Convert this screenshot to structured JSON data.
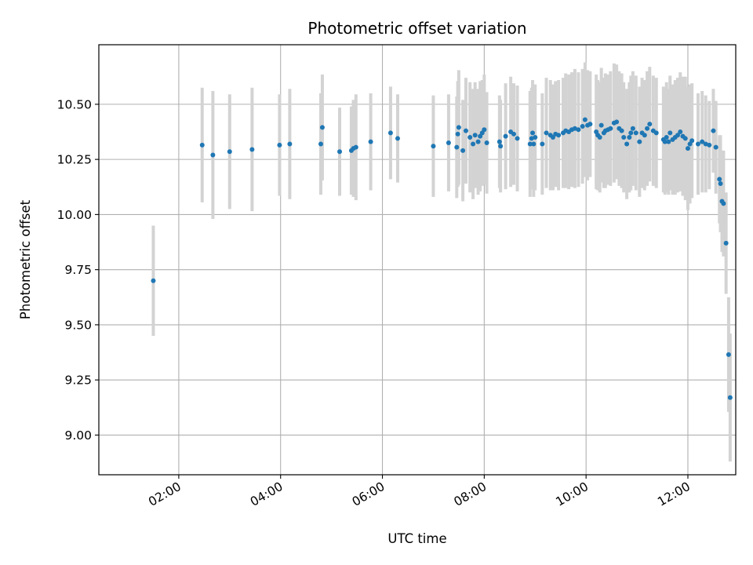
{
  "chart_data": {
    "type": "scatter",
    "title": "Photometric offset variation",
    "xlabel": "UTC time",
    "ylabel": "Photometric offset",
    "xlim": [
      0.43,
      12.94
    ],
    "ylim": [
      8.82,
      10.77
    ],
    "grid": true,
    "x_ticks": [
      2,
      4,
      6,
      8,
      10,
      12
    ],
    "x_tick_labels": [
      "02:00",
      "04:00",
      "06:00",
      "08:00",
      "10:00",
      "12:00"
    ],
    "y_ticks": [
      9.0,
      9.25,
      9.5,
      9.75,
      10.0,
      10.25,
      10.5
    ],
    "y_tick_labels": [
      "9.00",
      "9.25",
      "9.50",
      "9.75",
      "10.00",
      "10.25",
      "10.50"
    ],
    "colors": {
      "point": "#1f77b4",
      "errorbar": "#d3d3d3",
      "grid": "#b0b0b0"
    },
    "series": [
      {
        "name": "offset",
        "x": [
          1.5,
          2.46,
          2.67,
          3.0,
          3.44,
          3.98,
          4.18,
          4.79,
          4.82,
          5.16,
          5.39,
          5.43,
          5.48,
          5.77,
          6.16,
          6.3,
          7.0,
          7.3,
          7.46,
          7.48,
          7.5,
          7.58,
          7.64,
          7.72,
          7.78,
          7.82,
          7.88,
          7.92,
          7.96,
          8.0,
          8.05,
          8.3,
          8.32,
          8.42,
          8.52,
          8.58,
          8.65,
          8.9,
          8.93,
          8.95,
          8.97,
          9.0,
          9.14,
          9.22,
          9.3,
          9.35,
          9.4,
          9.46,
          9.55,
          9.6,
          9.66,
          9.72,
          9.78,
          9.85,
          9.93,
          9.98,
          10.03,
          10.08,
          10.2,
          10.23,
          10.27,
          10.3,
          10.35,
          10.38,
          10.43,
          10.48,
          10.55,
          10.6,
          10.65,
          10.7,
          10.74,
          10.8,
          10.85,
          10.88,
          10.92,
          10.98,
          11.05,
          11.1,
          11.15,
          11.2,
          11.25,
          11.32,
          11.38,
          11.52,
          11.55,
          11.58,
          11.62,
          11.65,
          11.7,
          11.75,
          11.8,
          11.85,
          11.9,
          11.95,
          12.0,
          12.04,
          12.08,
          12.2,
          12.28,
          12.35,
          12.42,
          12.5,
          12.55,
          12.62,
          12.64,
          12.67,
          12.7,
          12.75,
          12.8,
          12.83
        ],
        "y": [
          9.7,
          10.315,
          10.27,
          10.285,
          10.295,
          10.315,
          10.32,
          10.32,
          10.395,
          10.285,
          10.29,
          10.3,
          10.305,
          10.33,
          10.37,
          10.345,
          10.31,
          10.325,
          10.305,
          10.365,
          10.395,
          10.29,
          10.38,
          10.35,
          10.32,
          10.36,
          10.33,
          10.355,
          10.37,
          10.385,
          10.325,
          10.33,
          10.31,
          10.355,
          10.375,
          10.365,
          10.345,
          10.32,
          10.345,
          10.37,
          10.32,
          10.35,
          10.32,
          10.37,
          10.36,
          10.35,
          10.365,
          10.36,
          10.37,
          10.38,
          10.375,
          10.385,
          10.39,
          10.385,
          10.4,
          10.43,
          10.405,
          10.41,
          10.375,
          10.36,
          10.35,
          10.405,
          10.37,
          10.38,
          10.385,
          10.39,
          10.415,
          10.42,
          10.39,
          10.38,
          10.35,
          10.32,
          10.35,
          10.37,
          10.39,
          10.37,
          10.33,
          10.37,
          10.36,
          10.39,
          10.41,
          10.38,
          10.37,
          10.34,
          10.33,
          10.35,
          10.33,
          10.37,
          10.34,
          10.35,
          10.36,
          10.375,
          10.355,
          10.345,
          10.3,
          10.32,
          10.335,
          10.32,
          10.33,
          10.32,
          10.315,
          10.38,
          10.305,
          10.16,
          10.14,
          10.06,
          10.05,
          9.87,
          9.365,
          9.17
        ],
        "err": [
          0.25,
          0.26,
          0.29,
          0.26,
          0.28,
          0.23,
          0.25,
          0.23,
          0.24,
          0.2,
          0.2,
          0.22,
          0.24,
          0.22,
          0.21,
          0.2,
          0.23,
          0.22,
          0.23,
          0.24,
          0.26,
          0.23,
          0.24,
          0.25,
          0.25,
          0.24,
          0.24,
          0.25,
          0.24,
          0.25,
          0.23,
          0.21,
          0.21,
          0.24,
          0.25,
          0.23,
          0.24,
          0.24,
          0.23,
          0.24,
          0.24,
          0.24,
          0.23,
          0.25,
          0.25,
          0.24,
          0.24,
          0.25,
          0.25,
          0.26,
          0.26,
          0.26,
          0.27,
          0.26,
          0.26,
          0.26,
          0.25,
          0.24,
          0.26,
          0.25,
          0.25,
          0.26,
          0.25,
          0.26,
          0.25,
          0.26,
          0.27,
          0.26,
          0.26,
          0.26,
          0.25,
          0.25,
          0.25,
          0.26,
          0.26,
          0.26,
          0.25,
          0.25,
          0.25,
          0.26,
          0.26,
          0.25,
          0.25,
          0.24,
          0.24,
          0.25,
          0.24,
          0.26,
          0.25,
          0.26,
          0.26,
          0.27,
          0.27,
          0.28,
          0.28,
          0.27,
          0.26,
          0.23,
          0.23,
          0.22,
          0.2,
          0.19,
          0.21,
          0.2,
          0.22,
          0.23,
          0.24,
          0.23,
          0.26,
          0.29
        ]
      }
    ]
  }
}
